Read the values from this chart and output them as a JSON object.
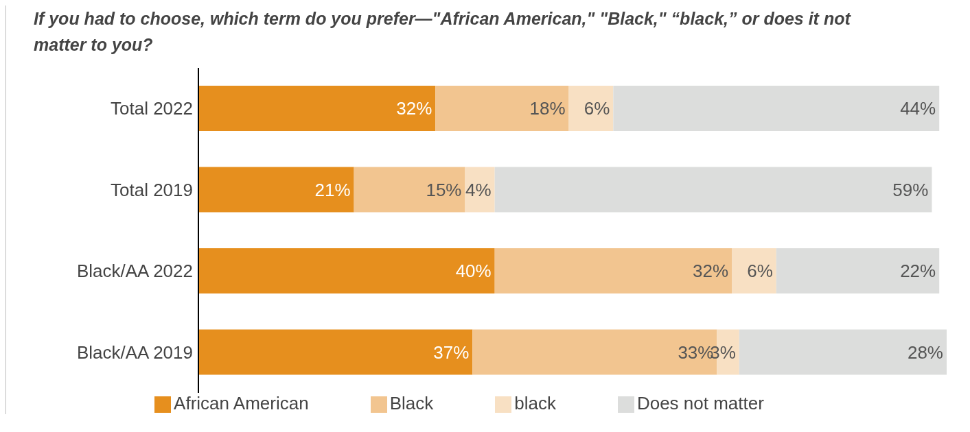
{
  "chart_data": {
    "type": "bar",
    "orientation": "horizontal",
    "stacked": true,
    "title": "If you had to choose, which term do you prefer—\"African American,\" \"Black,\" “black,” or does it not matter to you?",
    "categories": [
      "Total 2022",
      "Total 2019",
      "Black/AA 2022",
      "Black/AA 2019"
    ],
    "series": [
      {
        "name": "African American",
        "color": "#e68f1e",
        "values": [
          32,
          21,
          40,
          37
        ],
        "value_labels": [
          "32%",
          "21%",
          "40%",
          "37%"
        ]
      },
      {
        "name": "Black",
        "color": "#f2c590",
        "values": [
          18,
          15,
          32,
          33
        ],
        "value_labels": [
          "18%",
          "15%",
          "32%",
          "33%"
        ]
      },
      {
        "name": "black",
        "color": "#f8e0c3",
        "values": [
          6,
          4,
          6,
          3
        ],
        "value_labels": [
          "6%",
          "4%",
          "6%",
          "3%"
        ]
      },
      {
        "name": "Does not matter",
        "color": "#dcdddc",
        "values": [
          44,
          59,
          22,
          28
        ],
        "value_labels": [
          "44%",
          "59%",
          "22%",
          "28%"
        ]
      }
    ],
    "legend": "bottom",
    "tick_labels": "y"
  }
}
